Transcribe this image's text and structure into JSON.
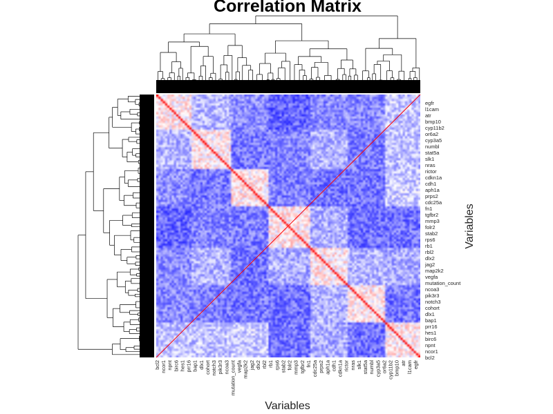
{
  "chart_data": {
    "type": "heatmap",
    "title": "Correlation Matrix",
    "xlabel": "Variables",
    "ylabel": "Variables",
    "dendrograms": [
      "top",
      "left"
    ],
    "color_scale": {
      "low": "#0000ff",
      "mid": "#ffffff",
      "high": "#ff0000"
    },
    "diagonal_value": 1,
    "x_tick_labels": [
      "bcl2",
      "ncor1",
      "npnt",
      "birc6",
      "hes1",
      "prr16",
      "bap1",
      "dlx1",
      "cohort",
      "notch3",
      "pik3r3",
      "ncoa3",
      "mutation_count",
      "vegfa",
      "map2k2",
      "jag2",
      "dlx2",
      "rbl2",
      "rb1",
      "rps6",
      "stab2",
      "folr2",
      "mmp3",
      "tgfbr2",
      "fn1",
      "cdc25a",
      "prps2",
      "aph1a",
      "cdh1",
      "cdkn1a",
      "rictor",
      "nras",
      "slk1",
      "stat5a",
      "numbl",
      "cyp3a5",
      "or6a2",
      "cyp11b2",
      "bmp10",
      "atr",
      "l1cam",
      "egfr"
    ],
    "y_tick_labels": [
      "egfr",
      "l1cam",
      "atr",
      "bmp10",
      "cyp11b2",
      "or6a2",
      "cyp3a5",
      "numbl",
      "stat5a",
      "slk1",
      "nras",
      "rictor",
      "cdkn1a",
      "cdh1",
      "aph1a",
      "prps2",
      "cdc25a",
      "fn1",
      "tgfbr2",
      "mmp3",
      "folr2",
      "stab2",
      "rps6",
      "rb1",
      "rbl2",
      "dlx2",
      "jag2",
      "map2k2",
      "vegfa",
      "mutation_count",
      "ncoa3",
      "pik3r3",
      "notch3",
      "cohort",
      "dlx1",
      "bap1",
      "prr16",
      "hes1",
      "birc6",
      "npnt",
      "ncor1",
      "bcl2"
    ]
  },
  "colors": {
    "positive": "#ff0000",
    "negative": "#0000ff",
    "background": "#ffffff"
  }
}
